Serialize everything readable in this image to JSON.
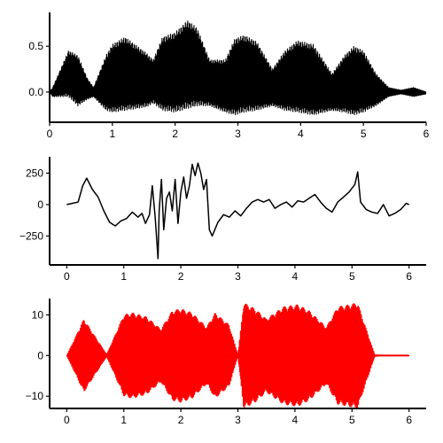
{
  "chart_data": [
    {
      "type": "line",
      "panel": "top",
      "title": "",
      "xlabel": "",
      "ylabel": "",
      "xlim": [
        0,
        6
      ],
      "ylim": [
        -0.33,
        0.87
      ],
      "x_ticks": [
        0,
        1,
        2,
        3,
        4,
        5,
        6
      ],
      "y_ticks": [
        0.0,
        0.5
      ],
      "x_tick_labels": [
        "0",
        "1",
        "2",
        "3",
        "4",
        "5",
        "6"
      ],
      "y_tick_labels": [
        "0.0",
        "0.5"
      ],
      "grid": false,
      "legend": "none",
      "series": [
        {
          "color": "#000000",
          "style": "dense-oscillation",
          "carrier_cycles_per_unit": 110,
          "envelope": {
            "x": [
              0.0,
              0.05,
              0.3,
              0.45,
              0.6,
              0.7,
              0.9,
              1.0,
              1.2,
              1.4,
              1.55,
              1.65,
              1.8,
              2.0,
              2.2,
              2.35,
              2.55,
              2.8,
              2.95,
              3.1,
              3.3,
              3.55,
              3.75,
              3.95,
              4.2,
              4.5,
              4.7,
              4.85,
              5.0,
              5.2,
              5.4,
              5.6,
              5.8,
              6.0
            ],
            "upper": [
              0.0,
              0.05,
              0.45,
              0.4,
              0.15,
              0.05,
              0.4,
              0.52,
              0.6,
              0.5,
              0.42,
              0.35,
              0.6,
              0.65,
              0.78,
              0.7,
              0.35,
              0.35,
              0.58,
              0.62,
              0.55,
              0.25,
              0.45,
              0.56,
              0.52,
              0.2,
              0.4,
              0.5,
              0.45,
              0.2,
              0.05,
              0.02,
              0.05,
              0.0
            ],
            "lower": [
              0.0,
              -0.05,
              -0.05,
              -0.15,
              -0.08,
              -0.05,
              -0.2,
              -0.22,
              -0.2,
              -0.18,
              -0.16,
              -0.12,
              -0.2,
              -0.22,
              -0.18,
              -0.15,
              -0.15,
              -0.22,
              -0.25,
              -0.22,
              -0.2,
              -0.15,
              -0.2,
              -0.22,
              -0.25,
              -0.2,
              -0.22,
              -0.25,
              -0.22,
              -0.15,
              -0.05,
              -0.02,
              -0.05,
              -0.02
            ]
          }
        }
      ]
    },
    {
      "type": "line",
      "panel": "middle",
      "title": "",
      "xlabel": "",
      "ylabel": "",
      "xlim": [
        -0.3,
        6.3
      ],
      "ylim": [
        -480,
        380
      ],
      "x_ticks": [
        0,
        1,
        2,
        3,
        4,
        5,
        6
      ],
      "y_ticks": [
        -250,
        0,
        250
      ],
      "x_tick_labels": [
        "0",
        "1",
        "2",
        "3",
        "4",
        "5",
        "6"
      ],
      "y_tick_labels": [
        "−250",
        "0",
        "250"
      ],
      "grid": false,
      "legend": "none",
      "series": [
        {
          "color": "#000000",
          "style": "line",
          "x": [
            0.0,
            0.1,
            0.2,
            0.28,
            0.35,
            0.45,
            0.55,
            0.65,
            0.75,
            0.85,
            0.95,
            1.05,
            1.15,
            1.25,
            1.32,
            1.38,
            1.45,
            1.5,
            1.55,
            1.6,
            1.62,
            1.66,
            1.7,
            1.75,
            1.8,
            1.85,
            1.9,
            1.95,
            2.0,
            2.05,
            2.1,
            2.15,
            2.2,
            2.25,
            2.3,
            2.35,
            2.4,
            2.45,
            2.5,
            2.55,
            2.65,
            2.75,
            2.85,
            2.95,
            3.05,
            3.15,
            3.25,
            3.35,
            3.45,
            3.55,
            3.65,
            3.75,
            3.85,
            3.95,
            4.05,
            4.15,
            4.25,
            4.35,
            4.45,
            4.55,
            4.65,
            4.75,
            4.85,
            4.95,
            5.05,
            5.1,
            5.15,
            5.25,
            5.35,
            5.45,
            5.55,
            5.65,
            5.75,
            5.85,
            5.95,
            6.0
          ],
          "y": [
            0,
            10,
            20,
            150,
            210,
            120,
            60,
            -50,
            -140,
            -170,
            -130,
            -110,
            -60,
            -100,
            -70,
            -150,
            -80,
            150,
            -100,
            -430,
            -50,
            200,
            -200,
            50,
            100,
            -50,
            200,
            -150,
            100,
            220,
            50,
            150,
            320,
            230,
            330,
            250,
            120,
            200,
            -200,
            -250,
            -140,
            -80,
            -100,
            -50,
            -90,
            -30,
            20,
            40,
            20,
            40,
            -30,
            0,
            20,
            -20,
            30,
            20,
            50,
            80,
            20,
            -30,
            -60,
            20,
            60,
            100,
            160,
            260,
            20,
            -40,
            -60,
            -70,
            0,
            -90,
            -70,
            -40,
            10,
            0
          ]
        }
      ]
    },
    {
      "type": "line",
      "panel": "bottom",
      "title": "",
      "xlabel": "",
      "ylabel": "",
      "xlim": [
        -0.3,
        6.3
      ],
      "ylim": [
        -13,
        14
      ],
      "x_ticks": [
        0,
        1,
        2,
        3,
        4,
        5,
        6
      ],
      "y_ticks": [
        -10,
        0,
        10
      ],
      "x_tick_labels": [
        "0",
        "1",
        "2",
        "3",
        "4",
        "5",
        "6"
      ],
      "y_tick_labels": [
        "−10",
        "0",
        "10"
      ],
      "grid": false,
      "legend": "none",
      "series": [
        {
          "color": "#ff0000",
          "style": "dense-oscillation",
          "carrier_cycles_per_unit": 110,
          "envelope": {
            "x": [
              0.0,
              0.3,
              0.7,
              1.0,
              1.15,
              1.4,
              1.65,
              1.85,
              2.0,
              2.2,
              2.45,
              2.6,
              2.85,
              3.0,
              3.1,
              3.3,
              3.5,
              3.8,
              4.05,
              4.25,
              4.55,
              4.75,
              4.95,
              5.1,
              5.4,
              5.5,
              6.0
            ],
            "amplitude": [
              0.0,
              9.0,
              0.3,
              10.0,
              10.5,
              9.5,
              6.5,
              11.0,
              11.5,
              10.5,
              7.0,
              10.5,
              7.5,
              0.2,
              13.0,
              11.5,
              9.0,
              12.0,
              12.5,
              11.0,
              7.0,
              12.0,
              12.5,
              13.0,
              0.2,
              0.1,
              0.1
            ]
          }
        }
      ]
    }
  ]
}
